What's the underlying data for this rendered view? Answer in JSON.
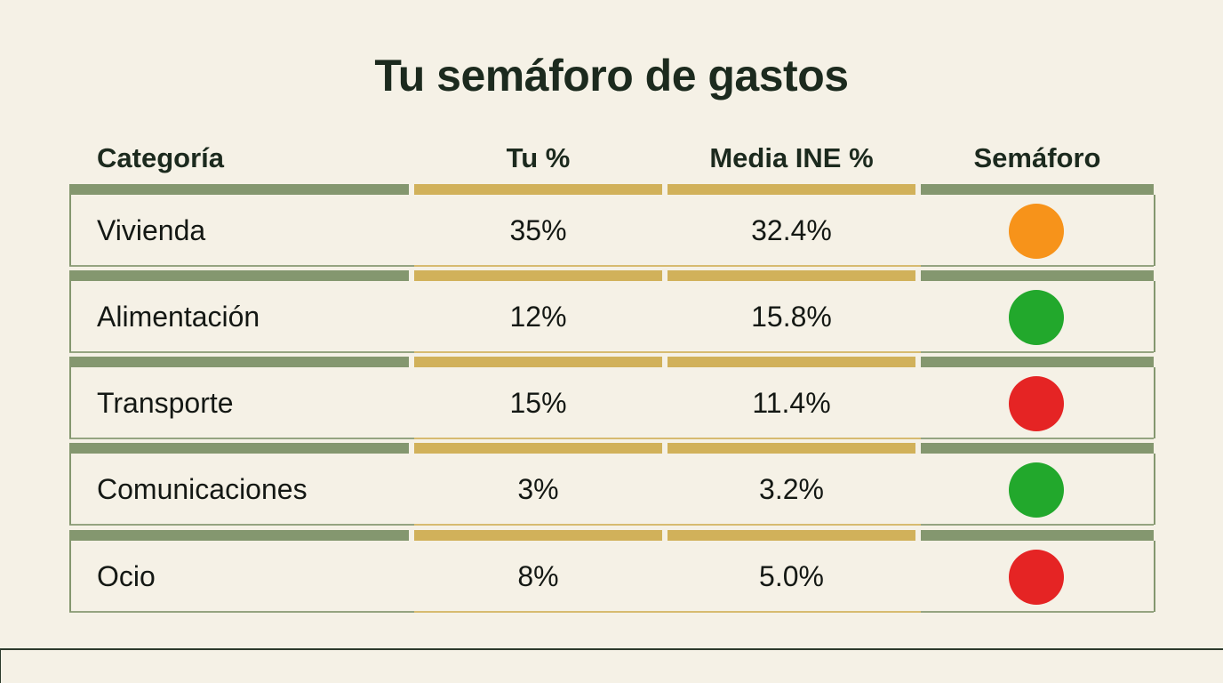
{
  "title": "Tu semáforo de gastos",
  "headers": {
    "category": "Categoría",
    "yours": "Tu %",
    "ine": "Media INE %",
    "light": "Semáforo"
  },
  "colors": {
    "background": "#f5f1e6",
    "green_bar": "#84976f",
    "gold_bar": "#d1b15a",
    "orange": "#f7931a",
    "green": "#22a82c",
    "red": "#e52424"
  },
  "rows": [
    {
      "category": "Vivienda",
      "yours": "35%",
      "ine": "32.4%",
      "light": "orange"
    },
    {
      "category": "Alimentación",
      "yours": "12%",
      "ine": "15.8%",
      "light": "green"
    },
    {
      "category": "Transporte",
      "yours": "15%",
      "ine": "11.4%",
      "light": "red"
    },
    {
      "category": "Comunicaciones",
      "yours": "3%",
      "ine": "3.2%",
      "light": "green"
    },
    {
      "category": "Ocio",
      "yours": "8%",
      "ine": "5.0%",
      "light": "red"
    }
  ]
}
